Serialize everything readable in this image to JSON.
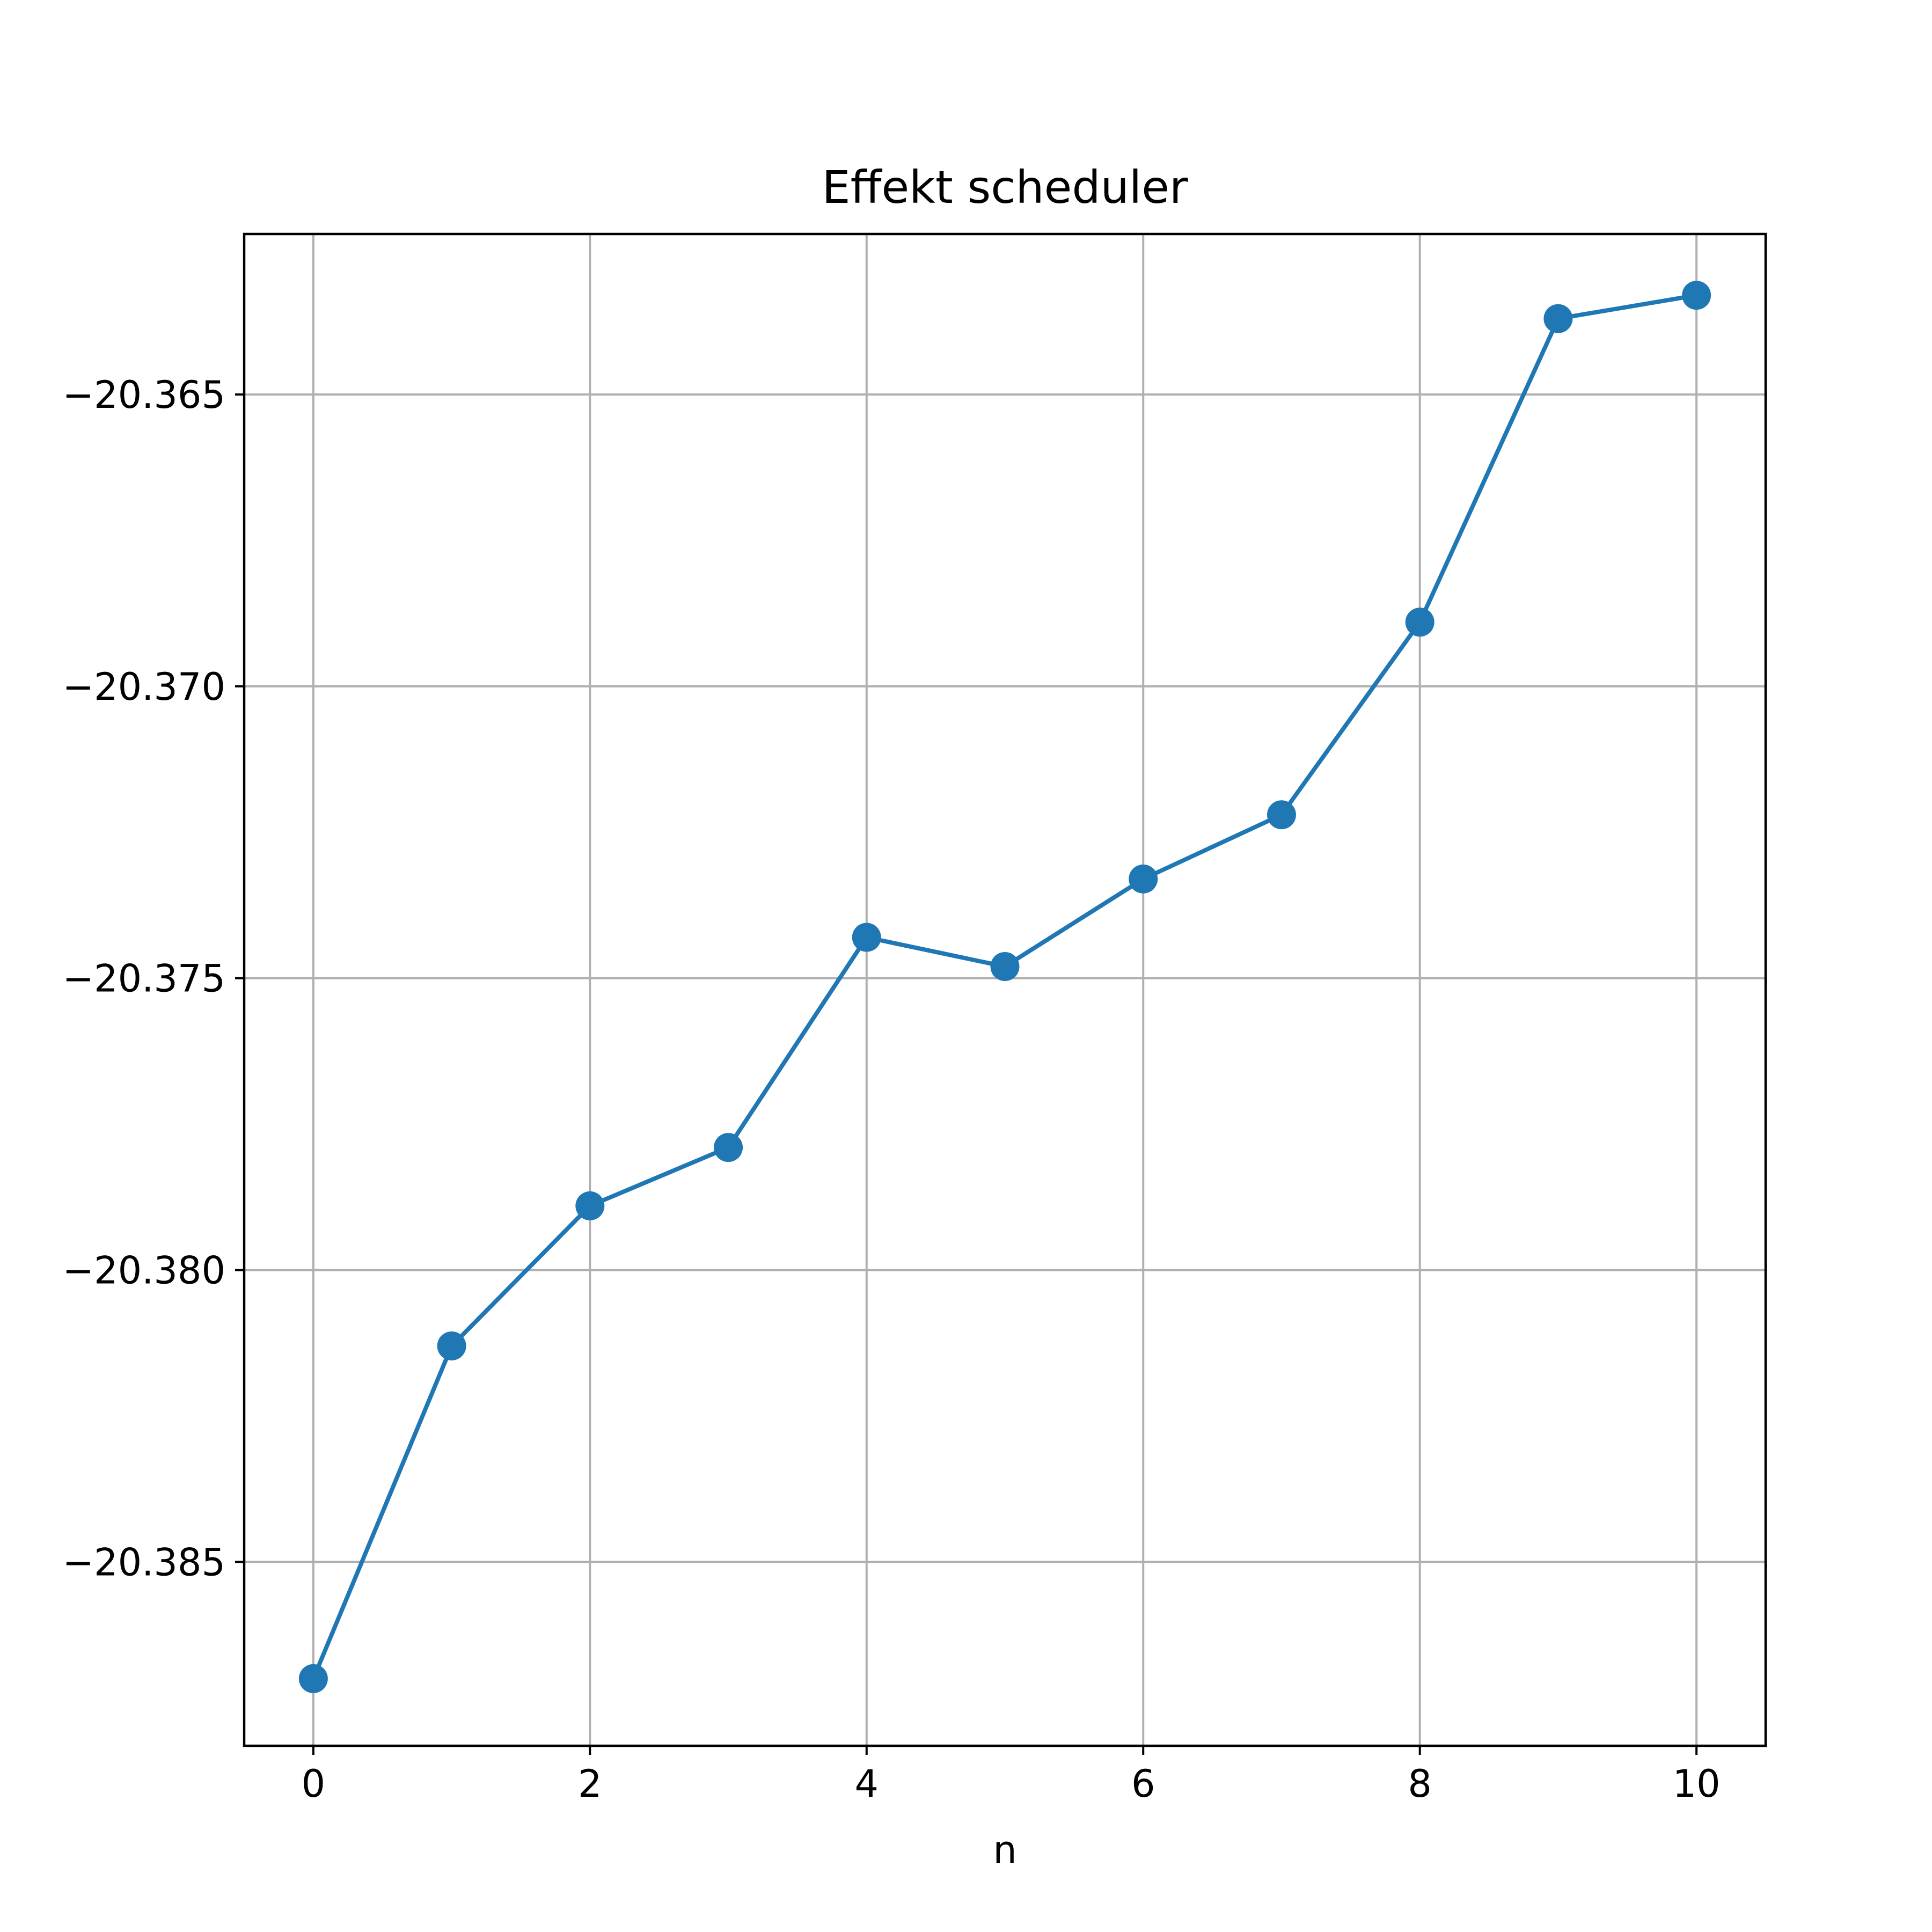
{
  "chart_data": {
    "type": "line",
    "title": "Effekt scheduler",
    "xlabel": "n",
    "ylabel": "",
    "x": [
      0,
      1,
      2,
      3,
      4,
      5,
      6,
      7,
      8,
      9,
      10
    ],
    "series": [
      {
        "values": [
          -20.387,
          -20.3813,
          -20.3789,
          -20.3779,
          -20.3743,
          -20.3748,
          -20.3733,
          -20.3722,
          -20.3689,
          -20.3637,
          -20.3633
        ],
        "color": "#1f77b4",
        "marker": "circle"
      }
    ],
    "xlim": [
      -0.5,
      10.5
    ],
    "ylim": [
      -20.38815,
      -20.36225
    ],
    "xticks": [
      0,
      2,
      4,
      6,
      8,
      10
    ],
    "xtick_labels": [
      "0",
      "2",
      "4",
      "6",
      "8",
      "10"
    ],
    "yticks": [
      -20.365,
      -20.37,
      -20.375,
      -20.38,
      -20.385
    ],
    "ytick_labels": [
      "−20.365",
      "−20.370",
      "−20.375",
      "−20.380",
      "−20.385"
    ],
    "grid": true,
    "grid_color": "#b0b0b0"
  }
}
